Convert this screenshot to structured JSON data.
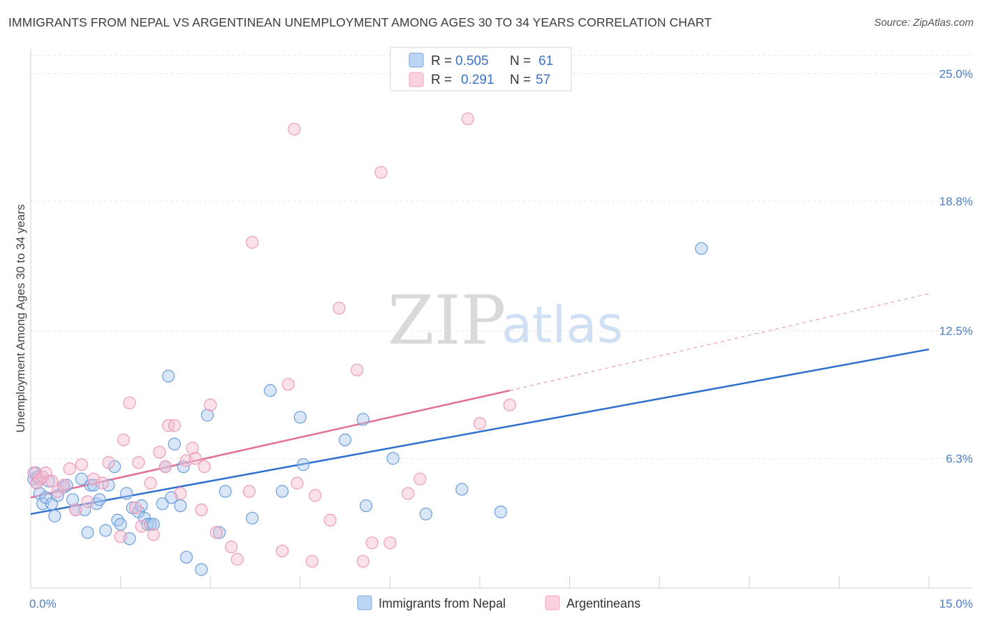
{
  "header": {
    "title": "IMMIGRANTS FROM NEPAL VS ARGENTINEAN UNEMPLOYMENT AMONG AGES 30 TO 34 YEARS CORRELATION CHART",
    "source": "Source: ZipAtlas.com"
  },
  "watermark": {
    "zip": "ZIP",
    "atlas": "atlas"
  },
  "legend": {
    "r_label": "R =",
    "n_label": "N =",
    "rows": [
      {
        "r": "0.505",
        "n": "61",
        "color": "#a9c8ef"
      },
      {
        "r": "0.291",
        "n": "57",
        "color": "#f6bcd0"
      }
    ]
  },
  "chart_data": {
    "type": "scatter",
    "title": "IMMIGRANTS FROM NEPAL VS ARGENTINEAN UNEMPLOYMENT AMONG AGES 30 TO 34 YEARS CORRELATION CHART",
    "xlabel": "",
    "ylabel": "Unemployment Among Ages 30 to 34 years",
    "xlim": [
      0,
      15
    ],
    "ylim": [
      0,
      26.2
    ],
    "x_tick_labels": [
      "0.0%",
      "15.0%"
    ],
    "y_ticks": [
      6.3,
      12.5,
      18.8,
      25.0
    ],
    "y_tick_labels": [
      "6.3%",
      "12.5%",
      "18.8%",
      "25.0%"
    ],
    "grid": true,
    "legend_position": "bottom-center",
    "series": [
      {
        "name": "Immigrants from Nepal",
        "color": "#7aa7e0",
        "line_color": "#2d6fcc",
        "trend": {
          "x0": 0,
          "y0": 3.6,
          "x1": 15,
          "y1": 11.6
        },
        "points": [
          [
            0.05,
            5.3
          ],
          [
            0.1,
            5.1
          ],
          [
            0.15,
            4.6
          ],
          [
            0.2,
            4.1
          ],
          [
            0.25,
            4.4
          ],
          [
            0.3,
            5.2
          ],
          [
            0.35,
            4.1
          ],
          [
            0.4,
            3.5
          ],
          [
            0.45,
            4.5
          ],
          [
            0.55,
            4.9
          ],
          [
            0.6,
            5.0
          ],
          [
            0.7,
            4.3
          ],
          [
            0.75,
            3.8
          ],
          [
            0.85,
            5.3
          ],
          [
            0.9,
            3.8
          ],
          [
            0.95,
            2.7
          ],
          [
            1.0,
            5.0
          ],
          [
            1.05,
            5.0
          ],
          [
            1.1,
            4.1
          ],
          [
            1.15,
            4.3
          ],
          [
            1.25,
            2.8
          ],
          [
            1.3,
            5.0
          ],
          [
            1.4,
            5.9
          ],
          [
            1.45,
            3.3
          ],
          [
            1.5,
            3.1
          ],
          [
            1.6,
            4.6
          ],
          [
            1.65,
            2.4
          ],
          [
            1.7,
            3.9
          ],
          [
            1.8,
            3.7
          ],
          [
            1.85,
            4.0
          ],
          [
            1.9,
            3.4
          ],
          [
            1.95,
            3.1
          ],
          [
            2.0,
            3.1
          ],
          [
            2.05,
            3.1
          ],
          [
            2.2,
            4.1
          ],
          [
            2.25,
            5.9
          ],
          [
            2.3,
            10.3
          ],
          [
            2.35,
            4.4
          ],
          [
            2.4,
            7.0
          ],
          [
            2.5,
            4.0
          ],
          [
            2.55,
            5.9
          ],
          [
            2.6,
            1.5
          ],
          [
            2.85,
            0.9
          ],
          [
            2.95,
            8.4
          ],
          [
            3.15,
            2.7
          ],
          [
            3.25,
            4.7
          ],
          [
            3.7,
            3.4
          ],
          [
            4.0,
            9.6
          ],
          [
            4.2,
            4.7
          ],
          [
            4.5,
            8.3
          ],
          [
            4.55,
            6.0
          ],
          [
            5.25,
            7.2
          ],
          [
            5.55,
            8.2
          ],
          [
            5.6,
            4.0
          ],
          [
            6.05,
            6.3
          ],
          [
            6.6,
            3.6
          ],
          [
            7.2,
            4.8
          ],
          [
            7.85,
            3.7
          ],
          [
            11.2,
            16.5
          ],
          [
            0.08,
            5.6
          ],
          [
            0.12,
            5.4
          ]
        ]
      },
      {
        "name": "Argentineans",
        "color": "#f3a6c0",
        "line_color": "#e36f99",
        "trend": {
          "x0": 0,
          "y0": 4.4,
          "x1": 8.0,
          "y1": 9.6
        },
        "trend_extension": {
          "x0": 8.0,
          "y0": 9.6,
          "x1": 15,
          "y1": 14.3
        },
        "points": [
          [
            0.05,
            5.6
          ],
          [
            0.1,
            5.1
          ],
          [
            0.15,
            5.3
          ],
          [
            0.2,
            5.4
          ],
          [
            0.25,
            5.6
          ],
          [
            0.35,
            5.2
          ],
          [
            0.45,
            4.7
          ],
          [
            0.55,
            5.0
          ],
          [
            0.65,
            5.8
          ],
          [
            0.75,
            3.8
          ],
          [
            0.85,
            6.0
          ],
          [
            0.95,
            4.2
          ],
          [
            1.05,
            5.3
          ],
          [
            1.2,
            5.1
          ],
          [
            1.3,
            6.1
          ],
          [
            1.5,
            2.5
          ],
          [
            1.55,
            7.2
          ],
          [
            1.65,
            9.0
          ],
          [
            1.75,
            3.9
          ],
          [
            1.8,
            6.1
          ],
          [
            1.85,
            3.0
          ],
          [
            2.0,
            5.1
          ],
          [
            2.05,
            2.6
          ],
          [
            2.15,
            6.6
          ],
          [
            2.25,
            5.9
          ],
          [
            2.3,
            7.9
          ],
          [
            2.4,
            7.9
          ],
          [
            2.5,
            4.6
          ],
          [
            2.6,
            6.2
          ],
          [
            2.7,
            6.8
          ],
          [
            2.75,
            6.3
          ],
          [
            2.85,
            3.8
          ],
          [
            2.9,
            5.9
          ],
          [
            3.0,
            8.9
          ],
          [
            3.1,
            2.7
          ],
          [
            3.35,
            2.0
          ],
          [
            3.45,
            1.4
          ],
          [
            3.65,
            4.7
          ],
          [
            3.7,
            16.8
          ],
          [
            4.2,
            1.8
          ],
          [
            4.3,
            9.9
          ],
          [
            4.4,
            22.3
          ],
          [
            4.45,
            5.1
          ],
          [
            4.7,
            1.3
          ],
          [
            4.75,
            4.5
          ],
          [
            5.0,
            3.3
          ],
          [
            5.15,
            13.6
          ],
          [
            5.45,
            10.6
          ],
          [
            5.55,
            1.3
          ],
          [
            5.7,
            2.2
          ],
          [
            5.85,
            20.2
          ],
          [
            6.0,
            2.2
          ],
          [
            6.3,
            4.6
          ],
          [
            6.5,
            5.3
          ],
          [
            7.3,
            22.8
          ],
          [
            7.5,
            8.0
          ],
          [
            8.0,
            8.9
          ]
        ]
      }
    ]
  }
}
